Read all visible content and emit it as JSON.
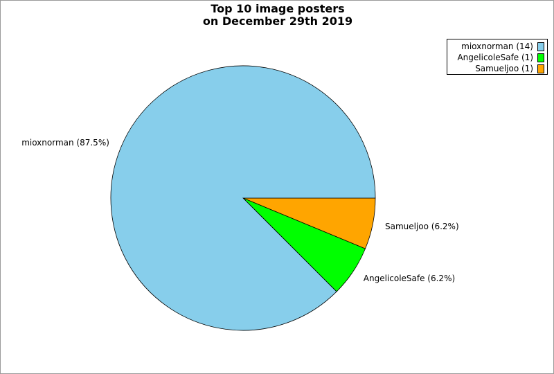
{
  "chart_data": {
    "type": "pie",
    "title": [
      "Top 10 image posters",
      "on December 29th 2019"
    ],
    "slices": [
      {
        "name": "mioxnorman",
        "value": 14,
        "percent_label": "mioxnorman (87.5%)",
        "legend_label": "mioxnorman (14)",
        "color": "#87ceeb"
      },
      {
        "name": "AngelicoleSafe",
        "value": 1,
        "percent_label": "AngelicoleSafe (6.2%)",
        "legend_label": "AngelicoleSafe (1)",
        "color": "#00ff00"
      },
      {
        "name": "Samueljoo",
        "value": 1,
        "percent_label": "Samueljoo (6.2%)",
        "legend_label": "Samueljoo (1)",
        "color": "#ffa500"
      }
    ],
    "legend_placement": "top-right"
  }
}
